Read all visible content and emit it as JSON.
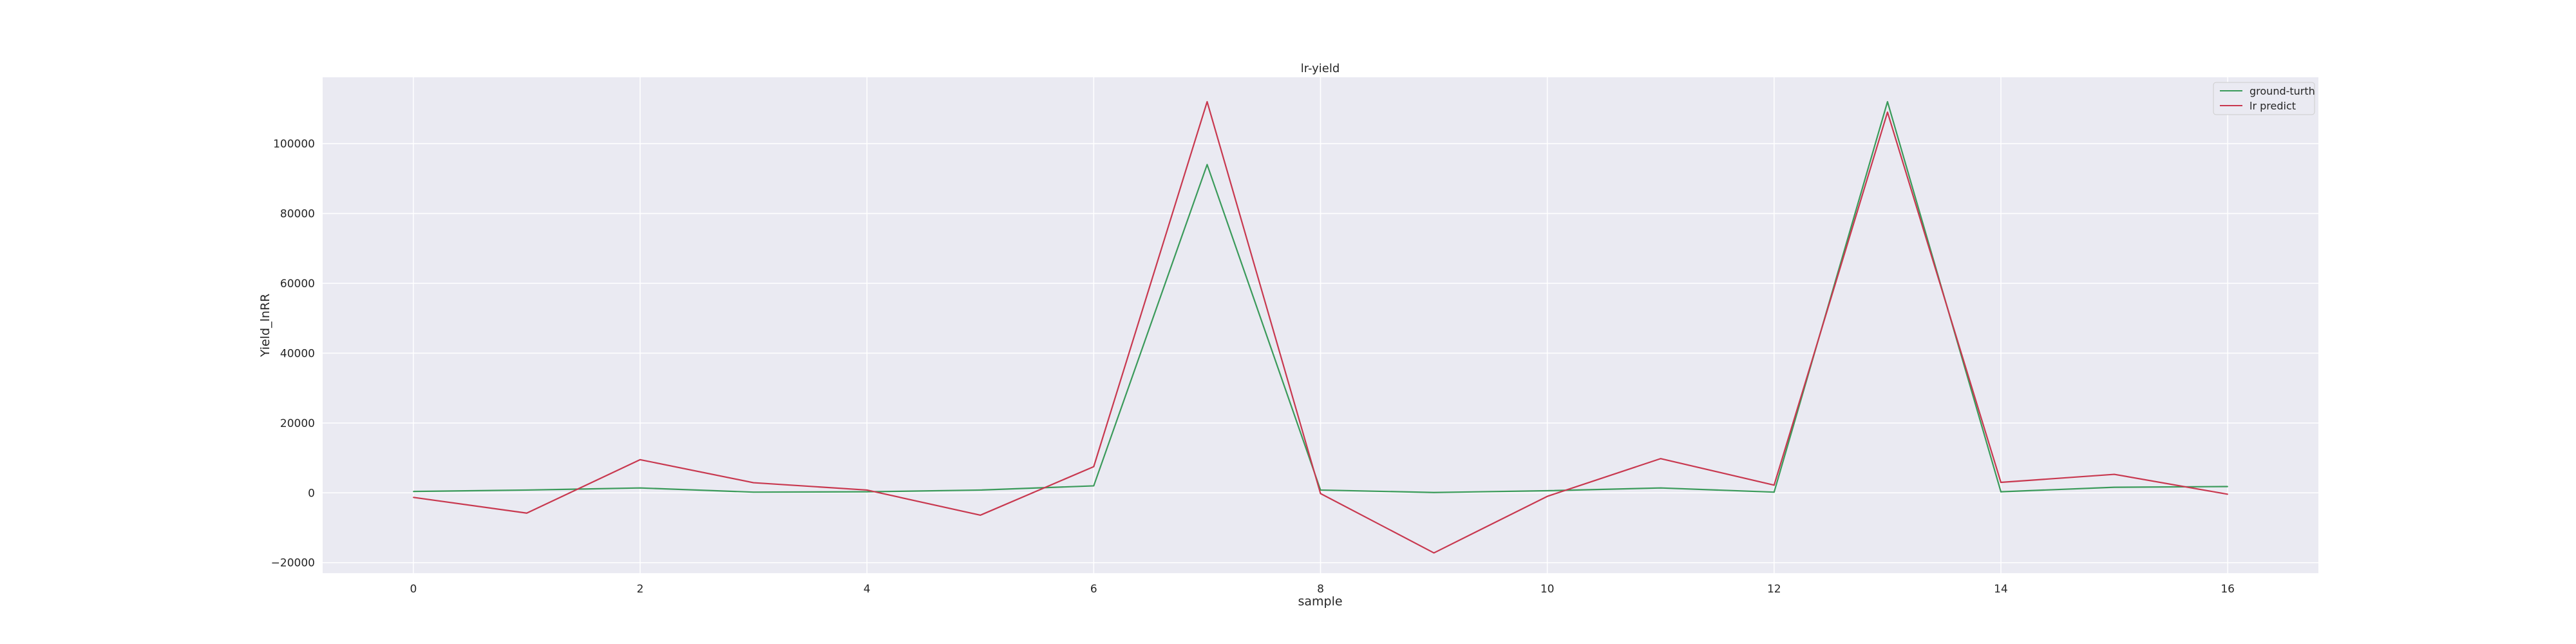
{
  "chart_data": {
    "type": "line",
    "title": "lr-yield",
    "xlabel": "sample",
    "ylabel": "Yield_lnRR",
    "x": [
      0,
      1,
      2,
      3,
      4,
      5,
      6,
      7,
      8,
      9,
      10,
      11,
      12,
      13,
      14,
      15,
      16
    ],
    "xlim": [
      -0.8,
      16.8
    ],
    "ylim": [
      -23000,
      119000
    ],
    "xticks": [
      0,
      2,
      4,
      6,
      8,
      10,
      12,
      14,
      16
    ],
    "yticks": [
      -20000,
      0,
      20000,
      40000,
      60000,
      80000,
      100000
    ],
    "ytick_labels": [
      "−20000",
      "0",
      "20000",
      "40000",
      "60000",
      "80000",
      "100000"
    ],
    "grid": true,
    "legend_position": "top-right",
    "series": [
      {
        "name": "ground-turth",
        "color": "#3a9a5a",
        "values": [
          400,
          800,
          1400,
          200,
          300,
          800,
          2000,
          94000,
          800,
          100,
          600,
          1400,
          200,
          112000,
          300,
          1600,
          1800
        ]
      },
      {
        "name": "lr predict",
        "color": "#c8384f",
        "values": [
          -1300,
          -5800,
          9500,
          2900,
          800,
          -6400,
          7500,
          112000,
          -200,
          -17200,
          -1000,
          9800,
          2200,
          109000,
          3000,
          5300,
          -400
        ]
      }
    ]
  }
}
